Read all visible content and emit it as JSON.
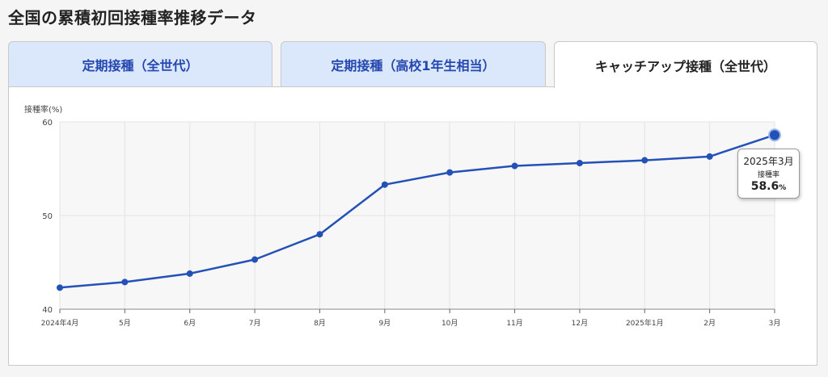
{
  "page": {
    "title": "全国の累積初回接種率推移データ"
  },
  "tabs": [
    {
      "label": "定期接種（全世代）",
      "active": false
    },
    {
      "label": "定期接種（高校1年生相当）",
      "active": false
    },
    {
      "label": "キャッチアップ接種（全世代）",
      "active": true
    }
  ],
  "chart_data": {
    "type": "line",
    "ylabel": "接種率(%)",
    "ylim": [
      40,
      60
    ],
    "yticks": [
      "40",
      "50",
      "60"
    ],
    "categories": [
      "2024年4月",
      "5月",
      "6月",
      "7月",
      "8月",
      "9月",
      "10月",
      "11月",
      "12月",
      "2025年1月",
      "2月",
      "3月"
    ],
    "values": [
      42.3,
      42.9,
      43.8,
      45.3,
      48.0,
      53.3,
      54.6,
      55.3,
      55.6,
      55.9,
      56.3,
      58.6
    ],
    "grid": true,
    "colors": {
      "line": "#2451b7",
      "grid": "#e3e3e3",
      "plot_bg": "#f7f7f7"
    }
  },
  "tooltip": {
    "date": "2025年3月",
    "label": "接種率",
    "value": "58.6",
    "unit": "%"
  }
}
